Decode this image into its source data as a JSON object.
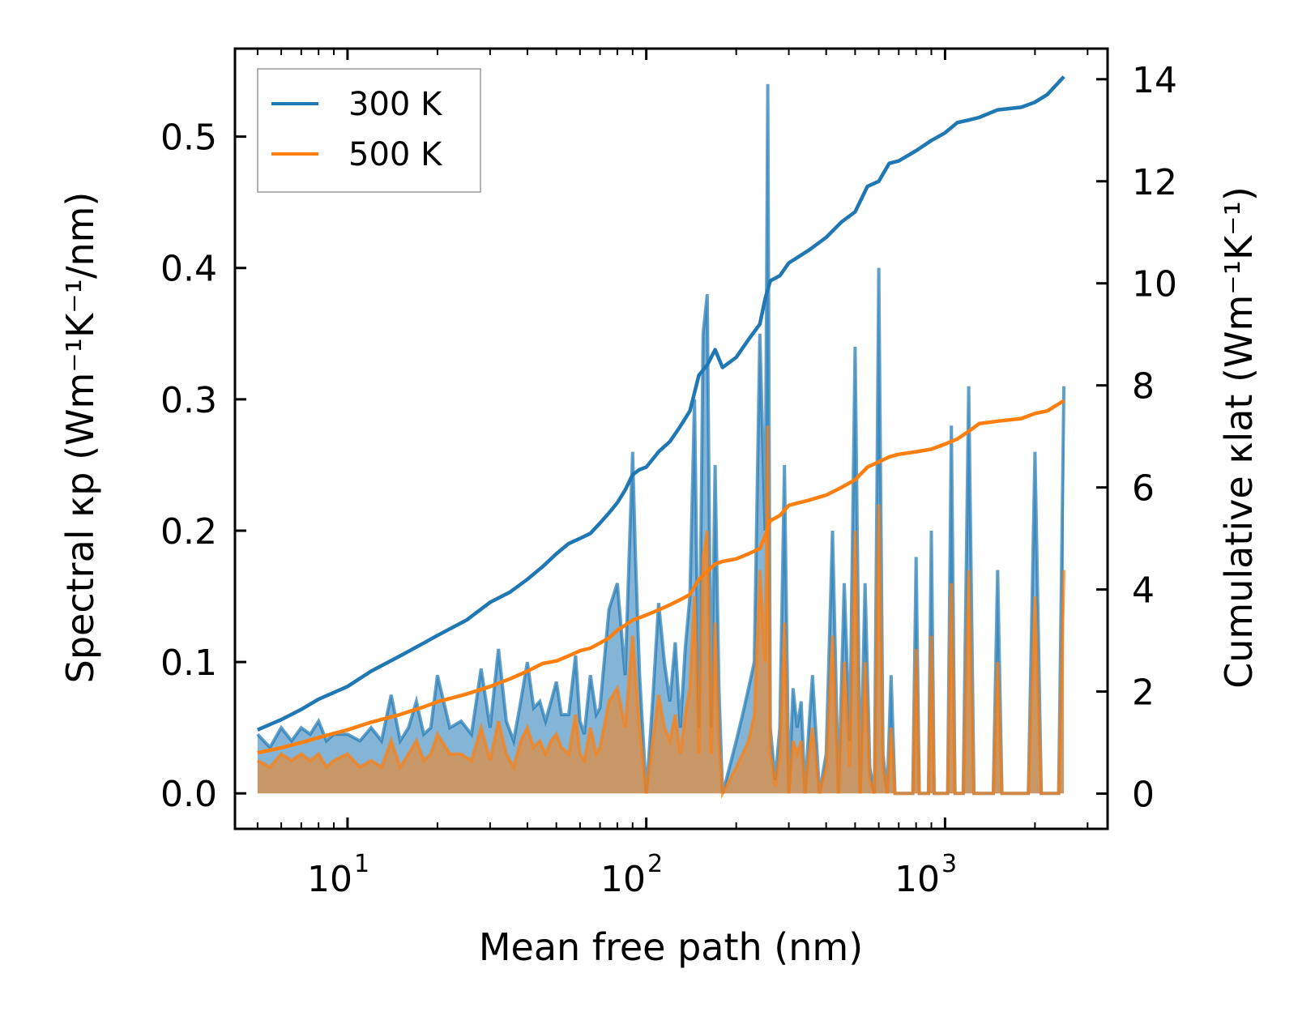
{
  "chart_data": {
    "type": "line",
    "x_scale": "log",
    "xlabel": "Mean free path (nm)",
    "ylabel_left": "Spectral κp (Wm⁻¹K⁻¹/nm)",
    "ylabel_right": "Cumulative κlat (Wm⁻¹K⁻¹)",
    "xlim": [
      4.2,
      3500
    ],
    "ylim_left": [
      -0.027,
      0.567
    ],
    "ylim_right": [
      -0.69,
      14.6
    ],
    "x_ticks": [
      10,
      100,
      1000
    ],
    "x_tick_labels": [
      "10",
      "10",
      "10"
    ],
    "x_tick_exponents": [
      "1",
      "2",
      "3"
    ],
    "y_left_ticks": [
      0.0,
      0.1,
      0.2,
      0.3,
      0.4,
      0.5
    ],
    "y_left_tick_labels": [
      "0.0",
      "0.1",
      "0.2",
      "0.3",
      "0.4",
      "0.5"
    ],
    "y_right_ticks": [
      0,
      2,
      4,
      6,
      8,
      10,
      12,
      14
    ],
    "y_right_tick_labels": [
      "0",
      "2",
      "4",
      "6",
      "8",
      "10",
      "12",
      "14"
    ],
    "legend": {
      "placement": "top-left",
      "entries": [
        "300 K",
        "500 K"
      ]
    },
    "colors": {
      "300 K": "#1f77b4",
      "500 K": "#ff7f0e"
    },
    "series": [
      {
        "name": "300 K",
        "axis": "right",
        "kind": "cumulative",
        "x": [
          5,
          6,
          7,
          8,
          10,
          12,
          15,
          18,
          20,
          25,
          30,
          35,
          40,
          45,
          50,
          55,
          60,
          65,
          70,
          75,
          80,
          85,
          90,
          95,
          100,
          110,
          120,
          130,
          140,
          150,
          160,
          170,
          180,
          200,
          220,
          240,
          250,
          260,
          280,
          300,
          350,
          400,
          450,
          500,
          550,
          600,
          650,
          700,
          800,
          900,
          1000,
          1100,
          1200,
          1300,
          1500,
          1800,
          2000,
          2200,
          2500
        ],
        "values": [
          1.25,
          1.45,
          1.65,
          1.85,
          2.1,
          2.4,
          2.7,
          2.95,
          3.1,
          3.4,
          3.75,
          3.95,
          4.2,
          4.45,
          4.7,
          4.9,
          5.0,
          5.1,
          5.3,
          5.5,
          5.7,
          5.95,
          6.25,
          6.35,
          6.4,
          6.7,
          6.9,
          7.2,
          7.5,
          8.2,
          8.4,
          8.7,
          8.35,
          8.55,
          8.9,
          9.2,
          9.7,
          10.05,
          10.15,
          10.4,
          10.65,
          10.9,
          11.2,
          11.4,
          11.9,
          12.0,
          12.35,
          12.4,
          12.6,
          12.8,
          12.95,
          13.15,
          13.2,
          13.25,
          13.4,
          13.45,
          13.55,
          13.7,
          14.05
        ]
      },
      {
        "name": "500 K",
        "axis": "right",
        "kind": "cumulative",
        "x": [
          5,
          6,
          7,
          8,
          10,
          12,
          15,
          18,
          20,
          25,
          30,
          35,
          40,
          45,
          50,
          55,
          60,
          65,
          70,
          75,
          80,
          85,
          90,
          95,
          100,
          110,
          120,
          130,
          140,
          150,
          160,
          170,
          180,
          200,
          220,
          240,
          250,
          260,
          280,
          300,
          350,
          400,
          450,
          500,
          550,
          600,
          650,
          700,
          800,
          900,
          1000,
          1100,
          1200,
          1300,
          1500,
          1800,
          2000,
          2200,
          2500
        ],
        "values": [
          0.8,
          0.9,
          1.0,
          1.1,
          1.25,
          1.4,
          1.55,
          1.7,
          1.8,
          1.95,
          2.1,
          2.25,
          2.4,
          2.55,
          2.6,
          2.7,
          2.8,
          2.85,
          2.95,
          3.05,
          3.2,
          3.3,
          3.4,
          3.45,
          3.5,
          3.6,
          3.7,
          3.8,
          3.9,
          4.2,
          4.35,
          4.5,
          4.55,
          4.6,
          4.7,
          4.8,
          5.05,
          5.35,
          5.45,
          5.65,
          5.75,
          5.85,
          6.0,
          6.15,
          6.4,
          6.5,
          6.6,
          6.65,
          6.7,
          6.75,
          6.85,
          6.95,
          7.1,
          7.25,
          7.3,
          7.35,
          7.45,
          7.5,
          7.7
        ]
      },
      {
        "name": "300 K",
        "axis": "left",
        "kind": "spectral",
        "x": [
          5.0,
          5.5,
          6.0,
          6.5,
          7.0,
          7.5,
          8.0,
          8.5,
          9.0,
          10,
          11,
          12,
          13,
          14,
          15,
          16,
          17,
          18,
          19,
          20,
          22,
          24,
          26,
          28,
          30,
          32,
          34,
          36,
          38,
          40,
          42,
          44,
          46,
          48,
          50,
          52,
          55,
          58,
          60,
          62,
          65,
          68,
          70,
          75,
          80,
          85,
          90,
          92,
          95,
          100,
          105,
          110,
          115,
          120,
          125,
          130,
          135,
          140,
          145,
          150,
          155,
          160,
          165,
          170,
          175,
          180,
          185,
          190,
          200,
          210,
          220,
          230,
          240,
          250,
          255,
          260,
          265,
          270,
          280,
          290,
          300,
          310,
          320,
          330,
          340,
          350,
          360,
          380,
          400,
          420,
          440,
          460,
          480,
          500,
          520,
          540,
          560,
          580,
          600,
          620,
          640,
          660,
          680,
          700,
          720,
          750,
          780,
          800,
          820,
          850,
          880,
          900,
          920,
          950,
          980,
          1000,
          1020,
          1050,
          1080,
          1100,
          1150,
          1200,
          1250,
          1300,
          1350,
          1400,
          1450,
          1500,
          1550,
          1600,
          1700,
          1800,
          1900,
          2000,
          2100,
          2200,
          2300,
          2400,
          2500
        ],
        "values": [
          0.045,
          0.035,
          0.05,
          0.04,
          0.05,
          0.045,
          0.055,
          0.04,
          0.045,
          0.045,
          0.04,
          0.05,
          0.04,
          0.075,
          0.04,
          0.05,
          0.07,
          0.045,
          0.05,
          0.09,
          0.05,
          0.055,
          0.045,
          0.095,
          0.05,
          0.11,
          0.055,
          0.04,
          0.07,
          0.1,
          0.065,
          0.07,
          0.055,
          0.07,
          0.085,
          0.06,
          0.06,
          0.105,
          0.055,
          0.045,
          0.09,
          0.06,
          0.065,
          0.14,
          0.16,
          0.09,
          0.26,
          0.18,
          0.09,
          0.0,
          0.07,
          0.145,
          0.1,
          0.07,
          0.115,
          0.05,
          0.11,
          0.15,
          0.3,
          0.05,
          0.35,
          0.38,
          0.05,
          0.25,
          0.08,
          0.0,
          0.01,
          0.02,
          0.04,
          0.06,
          0.08,
          0.1,
          0.35,
          0.2,
          0.54,
          0.05,
          0.03,
          0.01,
          0.05,
          0.25,
          0.0,
          0.08,
          0.05,
          0.07,
          0.0,
          0.05,
          0.09,
          0.0,
          0.03,
          0.2,
          0.0,
          0.16,
          0.04,
          0.34,
          0.0,
          0.16,
          0.02,
          0.0,
          0.4,
          0.03,
          0.0,
          0.09,
          0.0,
          0.0,
          0.0,
          0.0,
          0.0,
          0.18,
          0.0,
          0.0,
          0.0,
          0.2,
          0.0,
          0.0,
          0.0,
          0.0,
          0.0,
          0.28,
          0.0,
          0.0,
          0.0,
          0.31,
          0.0,
          0.0,
          0.0,
          0.0,
          0.0,
          0.17,
          0.0,
          0.0,
          0.0,
          0.0,
          0.0,
          0.26,
          0.0,
          0.0,
          0.0,
          0.0,
          0.31
        ]
      },
      {
        "name": "500 K",
        "axis": "left",
        "kind": "spectral",
        "x": [
          5.0,
          5.5,
          6.0,
          6.5,
          7.0,
          7.5,
          8.0,
          8.5,
          9.0,
          10,
          11,
          12,
          13,
          14,
          15,
          16,
          17,
          18,
          19,
          20,
          22,
          24,
          26,
          28,
          30,
          32,
          34,
          36,
          38,
          40,
          42,
          44,
          46,
          48,
          50,
          52,
          55,
          58,
          60,
          62,
          65,
          68,
          70,
          75,
          80,
          85,
          90,
          92,
          95,
          100,
          105,
          110,
          115,
          120,
          125,
          130,
          135,
          140,
          145,
          150,
          155,
          160,
          165,
          170,
          175,
          180,
          185,
          190,
          200,
          210,
          220,
          230,
          240,
          250,
          255,
          260,
          265,
          270,
          280,
          290,
          300,
          310,
          320,
          330,
          340,
          350,
          360,
          380,
          400,
          420,
          440,
          460,
          480,
          500,
          520,
          540,
          560,
          580,
          600,
          620,
          640,
          660,
          680,
          700,
          720,
          750,
          780,
          800,
          820,
          850,
          880,
          900,
          920,
          950,
          980,
          1000,
          1020,
          1050,
          1080,
          1100,
          1150,
          1200,
          1250,
          1300,
          1350,
          1400,
          1450,
          1500,
          1550,
          1600,
          1700,
          1800,
          1900,
          2000,
          2100,
          2200,
          2300,
          2400,
          2500
        ],
        "values": [
          0.025,
          0.02,
          0.03,
          0.025,
          0.03,
          0.025,
          0.03,
          0.02,
          0.025,
          0.03,
          0.02,
          0.025,
          0.02,
          0.04,
          0.02,
          0.03,
          0.04,
          0.025,
          0.03,
          0.045,
          0.03,
          0.03,
          0.025,
          0.05,
          0.025,
          0.055,
          0.03,
          0.02,
          0.04,
          0.05,
          0.035,
          0.04,
          0.03,
          0.04,
          0.045,
          0.035,
          0.03,
          0.06,
          0.03,
          0.025,
          0.05,
          0.03,
          0.035,
          0.07,
          0.08,
          0.05,
          0.12,
          0.09,
          0.05,
          0.0,
          0.04,
          0.075,
          0.05,
          0.04,
          0.06,
          0.03,
          0.06,
          0.08,
          0.15,
          0.03,
          0.18,
          0.2,
          0.03,
          0.13,
          0.04,
          0.0,
          0.005,
          0.01,
          0.02,
          0.03,
          0.04,
          0.06,
          0.17,
          0.1,
          0.28,
          0.03,
          0.02,
          0.005,
          0.03,
          0.13,
          0.0,
          0.04,
          0.03,
          0.04,
          0.0,
          0.03,
          0.05,
          0.0,
          0.02,
          0.12,
          0.0,
          0.1,
          0.02,
          0.2,
          0.0,
          0.1,
          0.01,
          0.0,
          0.22,
          0.02,
          0.0,
          0.05,
          0.0,
          0.0,
          0.0,
          0.0,
          0.0,
          0.11,
          0.0,
          0.0,
          0.0,
          0.12,
          0.0,
          0.0,
          0.0,
          0.0,
          0.0,
          0.16,
          0.0,
          0.0,
          0.0,
          0.17,
          0.0,
          0.0,
          0.0,
          0.0,
          0.0,
          0.1,
          0.0,
          0.0,
          0.0,
          0.0,
          0.0,
          0.15,
          0.0,
          0.0,
          0.0,
          0.0,
          0.17
        ]
      }
    ]
  }
}
